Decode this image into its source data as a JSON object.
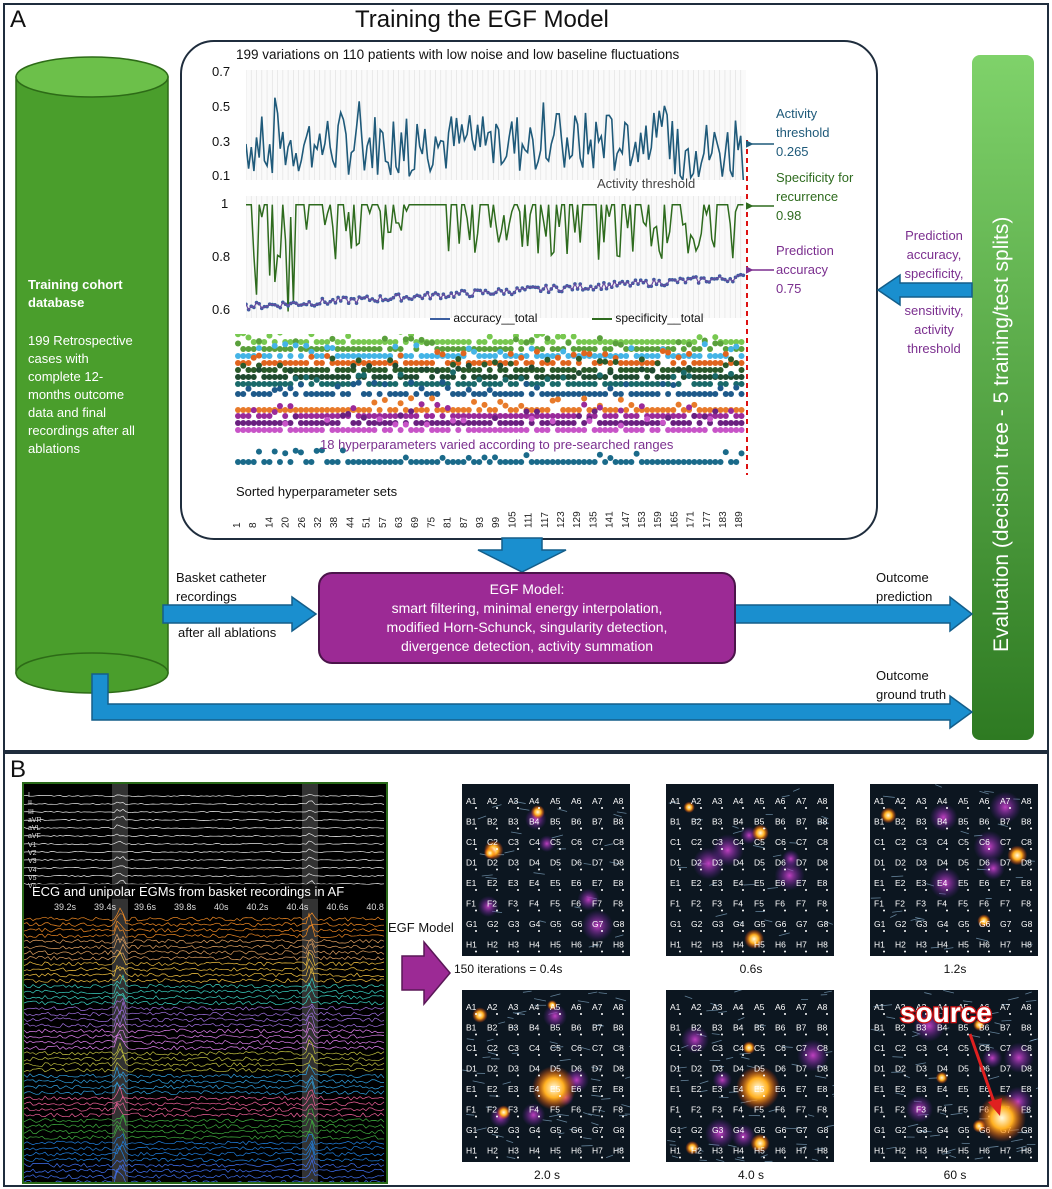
{
  "panel_a": {
    "letter": "A",
    "title": "Training the EGF Model",
    "chart_header": "199 variations on 110 patients with low noise and low baseline fluctuations",
    "cylinder": {
      "title_line1": "Training cohort",
      "title_line2": "database",
      "body": [
        "199 Retrospective",
        "cases with",
        "complete 12-",
        "months outcome",
        "data and final",
        "recordings after all",
        "ablations"
      ]
    },
    "top_chart": {
      "yticks": [
        "0.7",
        "0.5",
        "0.3",
        "0.1"
      ],
      "label": "Activity threshold",
      "annot_line1": "Activity",
      "annot_line2": "threshold",
      "annot_value": "0.265"
    },
    "mid_chart": {
      "yticks": [
        "1",
        "0.8",
        "0.6"
      ],
      "legend_acc": "accuracy__total",
      "legend_spec": "specificity__total",
      "spec_line1": "Specificity for",
      "spec_line2": "recurrence",
      "spec_value": "0.98",
      "acc_line1": "Prediction",
      "acc_line2": "accuracy",
      "acc_value": "0.75"
    },
    "hyper": {
      "label": "18 hyperparameters varied according to pre-searched ranges",
      "sorted_label": "Sorted hyperparameter sets",
      "xticks": [
        "1",
        "8",
        "14",
        "20",
        "26",
        "32",
        "38",
        "44",
        "51",
        "57",
        "63",
        "69",
        "75",
        "81",
        "87",
        "93",
        "99",
        "105",
        "111",
        "117",
        "123",
        "129",
        "135",
        "141",
        "147",
        "153",
        "159",
        "165",
        "171",
        "177",
        "183",
        "189"
      ]
    },
    "feedback": [
      "Prediction",
      "accuracy,",
      "specificity,",
      "sensitivity,",
      "activity",
      "threshold"
    ],
    "evaluation": "Evaluation (decision tree - 5 training/test splits)",
    "basket_line1": "Basket catheter",
    "basket_line2": "recordings",
    "after_ablations": "after all ablations",
    "egf_box": [
      "EGF Model:",
      "smart filtering, minimal energy interpolation,",
      "modified Horn-Schunck, singularity detection,",
      "divergence detection, activity summation"
    ],
    "outcome_pred": [
      "Outcome",
      "prediction"
    ],
    "outcome_gt": [
      "Outcome",
      "ground truth"
    ],
    "colors": {
      "cylinder": "#4a9e2c",
      "egf": "#9c2a95",
      "arrow": "#1a8fcf"
    }
  },
  "panel_b": {
    "letter": "B",
    "ecg_leads": [
      "I",
      "II",
      "III",
      "aVR",
      "aVL",
      "aVF",
      "V1",
      "V2",
      "V3",
      "V4",
      "V5",
      "V6"
    ],
    "ecg_caption": "ECG and unipolar EGMs from basket recordings in AF",
    "time_ticks": [
      "39.2s",
      "39.4s",
      "39.6s",
      "39.8s",
      "40s",
      "40.2s",
      "40.4s",
      "40.6s",
      "40.8"
    ],
    "egf_arrow_label": "EGF Model",
    "grid_rows": [
      "A",
      "B",
      "C",
      "D",
      "E",
      "F",
      "G",
      "H"
    ],
    "frame_captions": [
      "150 iterations = 0.4s",
      "0.6s",
      "1.2s",
      "2.0 s",
      "4.0 s",
      "60 s"
    ],
    "source_label": "source"
  }
}
